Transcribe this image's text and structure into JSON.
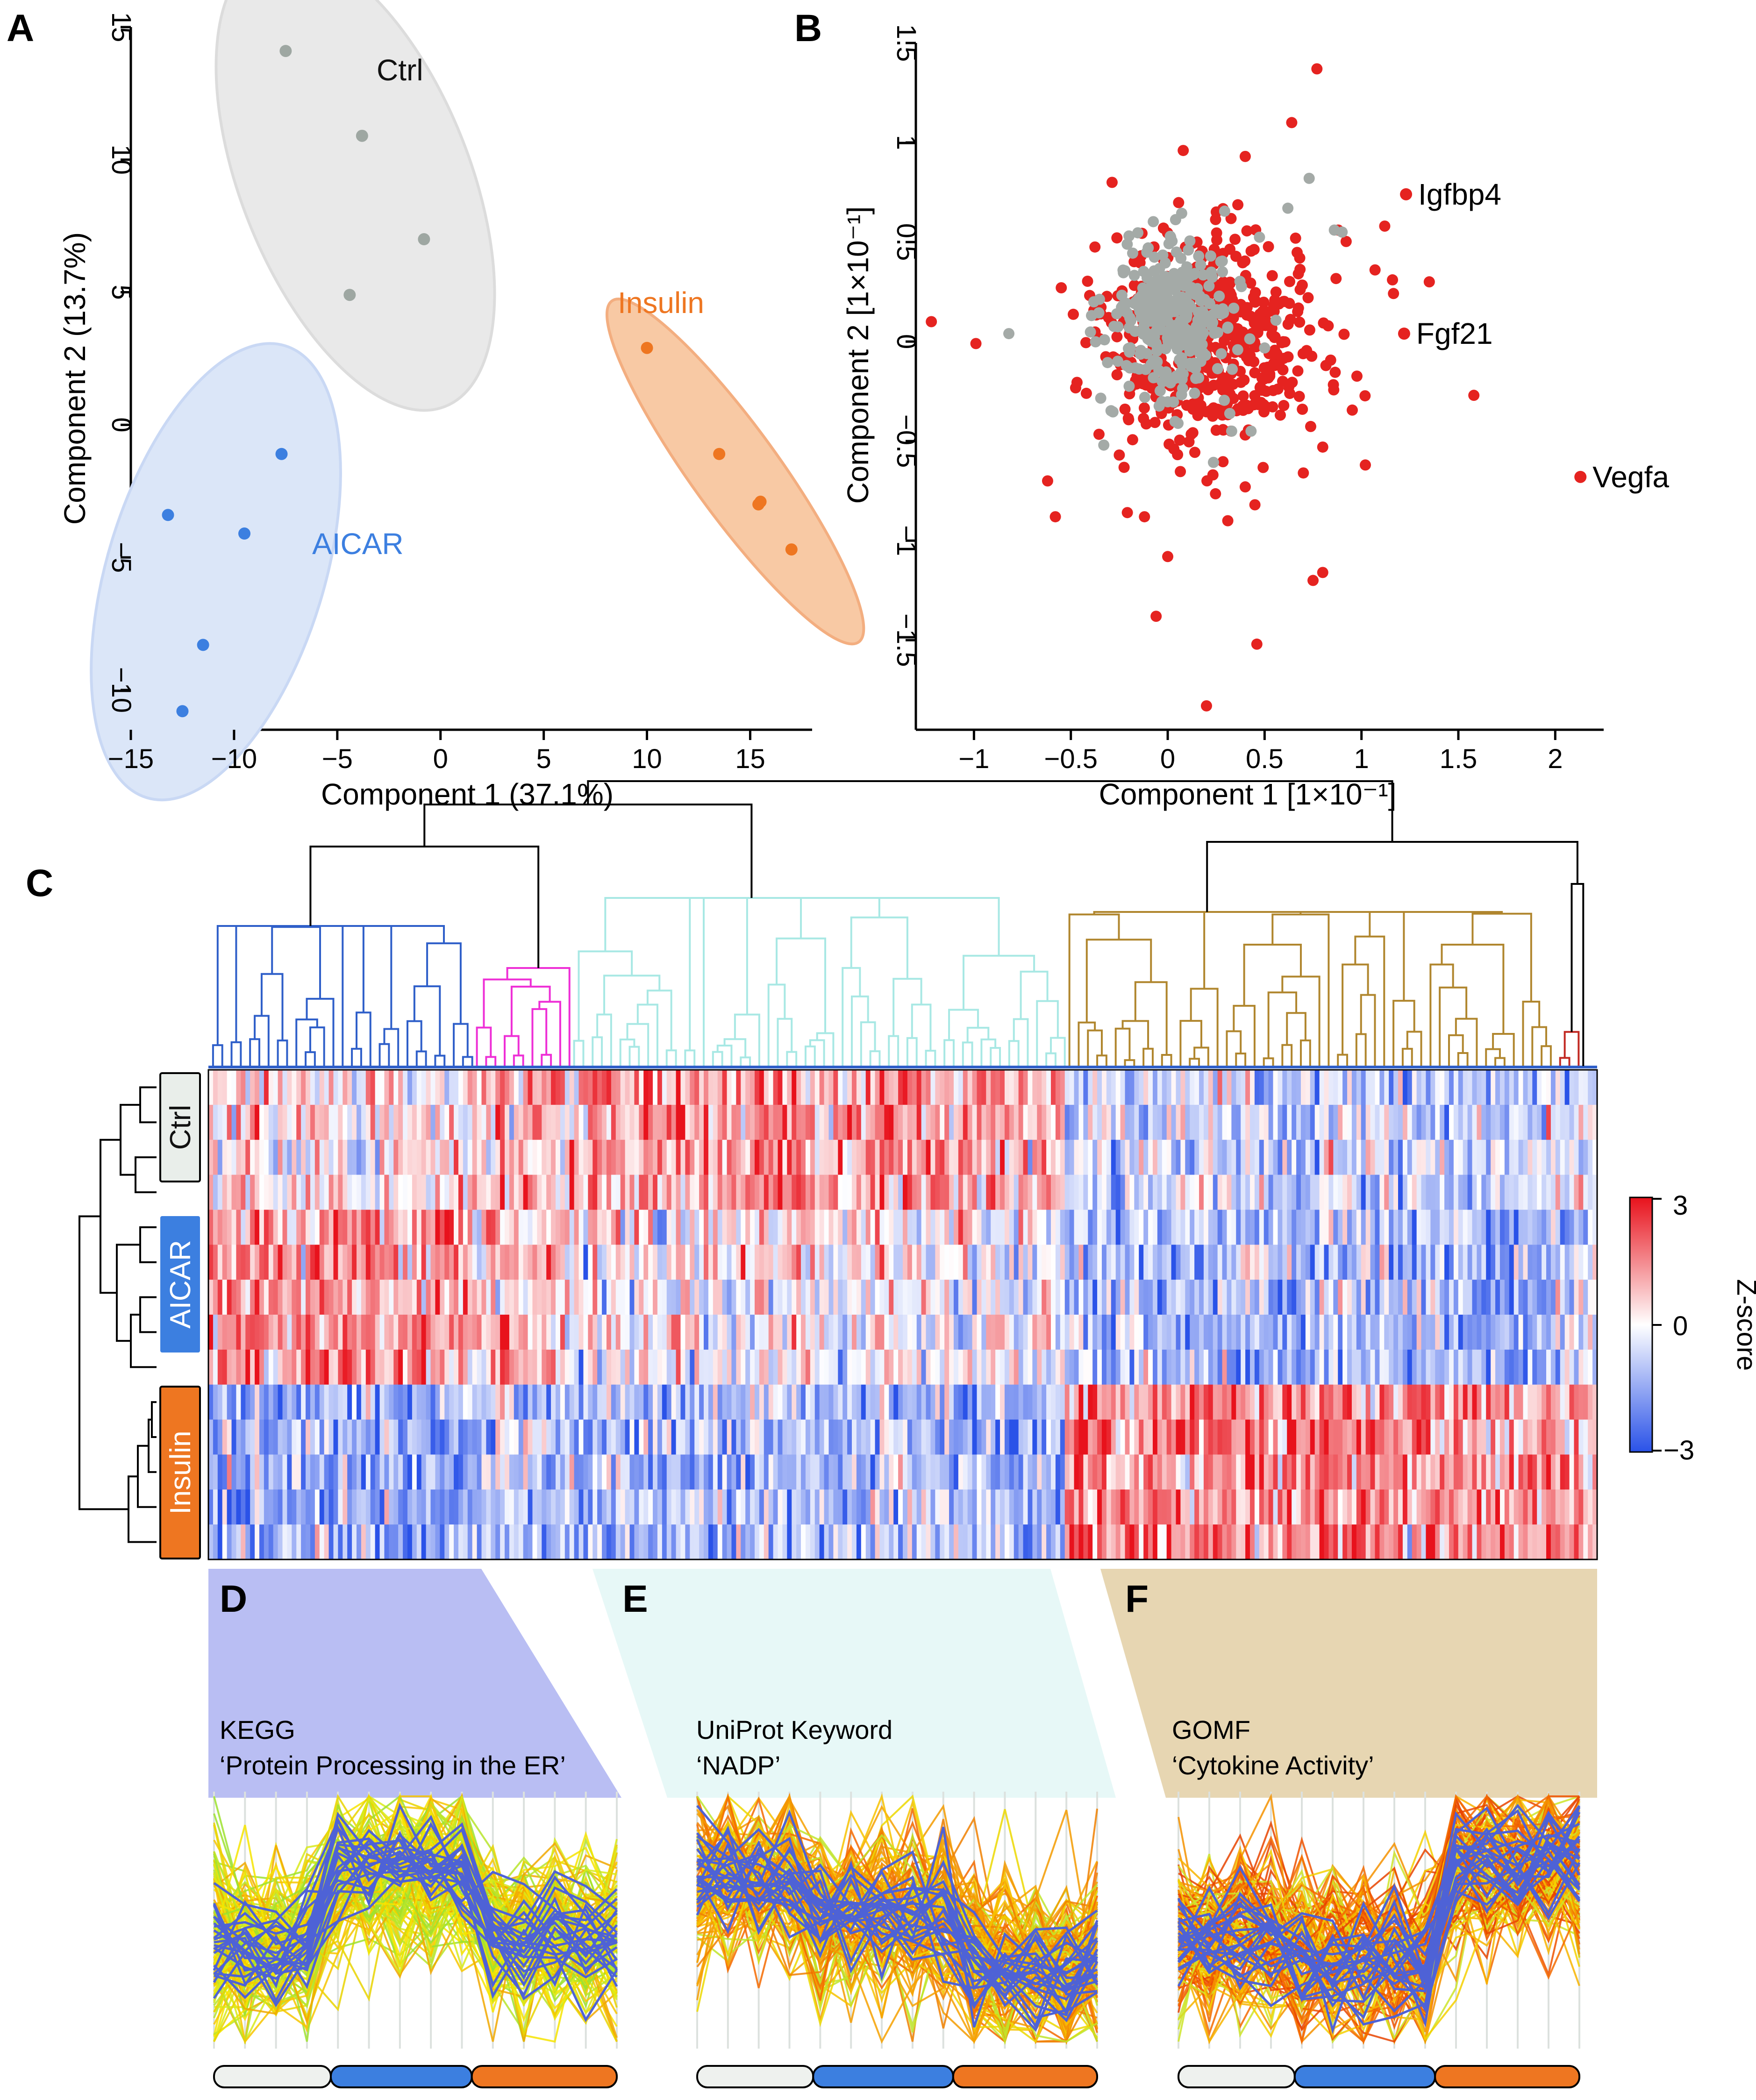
{
  "panels": {
    "A": "A",
    "B": "B",
    "C": "C",
    "D": "D",
    "E": "E",
    "F": "F"
  },
  "colors": {
    "ctrl": "#9ea7a2",
    "aicar": "#3c7fe0",
    "insulin": "#ee7621",
    "ctrl_fill": "#e9e9e9",
    "aicar_fill": "#dbe6f8",
    "insulin_fill": "#f8c9a4",
    "red": "#e52320",
    "grey": "#a4aaa7",
    "dendro_blue": "#2f5fc9",
    "dendro_magenta": "#ee2fd6",
    "dendro_cyan": "#a8e8e4",
    "dendro_gold": "#b0862e",
    "dendro_red": "#c22a23",
    "dendro_green": "#9ad77a"
  },
  "chart_data": [
    {
      "id": "A",
      "type": "scatter",
      "xlabel": "Component 1 (37.1%)",
      "ylabel": "Component 2 (13.7%)",
      "xlim": [
        -15,
        18
      ],
      "ylim": [
        -11.5,
        15
      ],
      "xticks": [
        "−15",
        "−10",
        "−5",
        "0",
        "5",
        "10",
        "15"
      ],
      "yticks": [
        "−10",
        "−5",
        "0",
        "5",
        "10",
        "15"
      ],
      "xtick_values": [
        -15,
        -10,
        -5,
        0,
        5,
        10,
        15
      ],
      "ytick_values": [
        -10,
        -5,
        0,
        5,
        10,
        15
      ],
      "series": [
        {
          "name": "Ctrl",
          "color": "#9ea7a2",
          "points": [
            [
              -7.5,
              14.1
            ],
            [
              -3.8,
              10.9
            ],
            [
              -0.8,
              7.0
            ],
            [
              -4.4,
              4.9
            ]
          ]
        },
        {
          "name": "AICAR",
          "color": "#3c7fe0",
          "points": [
            [
              -7.7,
              -1.1
            ],
            [
              -13.2,
              -3.4
            ],
            [
              -9.5,
              -4.1
            ],
            [
              -11.5,
              -8.3
            ],
            [
              -12.5,
              -10.8
            ]
          ]
        },
        {
          "name": "Insulin",
          "color": "#ee7621",
          "points": [
            [
              10.0,
              2.9
            ],
            [
              13.5,
              -1.1
            ],
            [
              15.5,
              -2.9
            ],
            [
              15.4,
              -3.0
            ],
            [
              17.0,
              -4.7
            ]
          ]
        }
      ],
      "annotations": [
        "Ctrl",
        "AICAR",
        "Insulin"
      ]
    },
    {
      "id": "B",
      "type": "scatter",
      "xlabel": "Component 1 [1×10⁻¹]",
      "ylabel": "Component 2 [1×10⁻¹]",
      "xlim": [
        -1.3,
        2.25
      ],
      "ylim": [
        -1.95,
        1.5
      ],
      "xticks": [
        "−1",
        "−0.5",
        "0",
        "0.5",
        "1",
        "1.5",
        "2"
      ],
      "yticks": [
        "−1.5",
        "−1",
        "−0.5",
        "0",
        "0.5",
        "1",
        "1.5"
      ],
      "xtick_values": [
        -1,
        -0.5,
        0,
        0.5,
        1,
        1.5,
        2
      ],
      "ytick_values": [
        -1.5,
        -1,
        -0.5,
        0,
        0.5,
        1,
        1.5
      ],
      "labeled_points": [
        {
          "label": "Igfbp4",
          "x": 1.23,
          "y": 0.74
        },
        {
          "label": "Fgf21",
          "x": 1.22,
          "y": 0.04
        },
        {
          "label": "Vegfa",
          "x": 2.13,
          "y": -0.68
        }
      ],
      "red_outliers": [
        [
          -1.22,
          0.1
        ],
        [
          -0.99,
          -0.01
        ],
        [
          -0.62,
          -0.7
        ],
        [
          -0.58,
          -0.88
        ],
        [
          -0.12,
          -0.88
        ],
        [
          -0.06,
          -1.38
        ],
        [
          0.0,
          -1.08
        ],
        [
          0.2,
          -1.83
        ],
        [
          0.46,
          -1.52
        ],
        [
          0.75,
          -1.2
        ],
        [
          0.8,
          -1.16
        ],
        [
          0.4,
          -0.73
        ],
        [
          0.31,
          -0.9
        ],
        [
          0.45,
          -0.82
        ],
        [
          0.7,
          -0.66
        ],
        [
          0.8,
          -0.53
        ],
        [
          1.02,
          -0.62
        ],
        [
          1.58,
          -0.27
        ],
        [
          1.07,
          0.36
        ],
        [
          1.12,
          0.58
        ],
        [
          1.16,
          0.31
        ],
        [
          0.77,
          1.37
        ],
        [
          0.64,
          1.1
        ],
        [
          -0.42,
          -0.26
        ],
        [
          -0.25,
          -0.57
        ],
        [
          0.08,
          0.96
        ],
        [
          0.4,
          0.93
        ],
        [
          0.88,
          0.56
        ],
        [
          1.35,
          0.3
        ]
      ],
      "grey_outliers": [
        [
          -0.82,
          0.04
        ],
        [
          0.86,
          0.56
        ],
        [
          0.9,
          0.55
        ],
        [
          0.73,
          0.82
        ],
        [
          0.62,
          0.67
        ],
        [
          -0.33,
          -0.52
        ],
        [
          0.33,
          -0.45
        ],
        [
          0.43,
          -0.45
        ]
      ],
      "red_cloud": {
        "center": [
          0.22,
          0.0
        ],
        "spread": [
          0.46,
          0.42
        ],
        "count": 560
      },
      "grey_cloud": {
        "center": [
          0.02,
          0.12
        ],
        "spread": [
          0.26,
          0.32
        ],
        "count": 320
      }
    },
    {
      "id": "C",
      "type": "heatmap",
      "rows": [
        "Ctrl",
        "Ctrl",
        "Ctrl",
        "Ctrl",
        "AICAR",
        "AICAR",
        "AICAR",
        "AICAR",
        "AICAR",
        "Insulin",
        "Insulin",
        "Insulin",
        "Insulin",
        "Insulin"
      ],
      "row_groups": [
        "Ctrl",
        "AICAR",
        "Insulin"
      ],
      "column_clusters": [
        {
          "name": "blue",
          "color": "#2f5fc9",
          "fraction": 0.19,
          "profile": {
            "Ctrl": 0.15,
            "AICAR": 0.75,
            "Insulin": -0.9
          }
        },
        {
          "name": "magenta",
          "color": "#ee2fd6",
          "fraction": 0.07,
          "profile": {
            "Ctrl": 0.3,
            "AICAR": 0.35,
            "Insulin": -0.6
          }
        },
        {
          "name": "cyan",
          "color": "#a8e8e4",
          "fraction": 0.355,
          "profile": {
            "Ctrl": 0.8,
            "AICAR": 0.05,
            "Insulin": -0.7
          }
        },
        {
          "name": "gold",
          "color": "#b0862e",
          "fraction": 0.355,
          "profile": {
            "Ctrl": -0.45,
            "AICAR": -0.7,
            "Insulin": 0.95
          }
        },
        {
          "name": "red",
          "color": "#c22a23",
          "fraction": 0.015,
          "profile": {
            "Ctrl": -0.3,
            "AICAR": -0.4,
            "Insulin": 0.8
          }
        },
        {
          "name": "green",
          "color": "#9ad77a",
          "fraction": 0.005,
          "profile": {
            "Ctrl": -0.2,
            "AICAR": -0.3,
            "Insulin": 0.5
          }
        }
      ],
      "colorbar": {
        "title": "Z-score",
        "ticks": [
          "3",
          "0",
          "−3"
        ],
        "tick_values": [
          3,
          0,
          -3
        ],
        "range": [
          -3,
          3
        ],
        "colors": [
          "#2a52e8",
          "#ffffff",
          "#e8121c"
        ]
      }
    },
    {
      "id": "D",
      "type": "line",
      "source": "KEGG",
      "term": "‘Protein Processing in the ER’",
      "highlight_color": "#4e62d6",
      "background_palette": "yellow-green",
      "group_bar": [
        "Ctrl",
        "AICAR",
        "Insulin"
      ],
      "highlight_profile": {
        "Ctrl": -0.3,
        "AICAR": 0.6,
        "Insulin": -0.2
      }
    },
    {
      "id": "E",
      "type": "line",
      "source": "UniProt Keyword",
      "term": "‘NADP’",
      "highlight_color": "#4e62d6",
      "background_palette": "orange-yellow",
      "group_bar": [
        "Ctrl",
        "AICAR",
        "Insulin"
      ],
      "highlight_profile": {
        "Ctrl": 0.5,
        "AICAR": 0.1,
        "Insulin": -0.5
      }
    },
    {
      "id": "F",
      "type": "line",
      "source": "GOMF",
      "term": "‘Cytokine Activity’",
      "highlight_color": "#4e62d6",
      "background_palette": "orange",
      "group_bar": [
        "Ctrl",
        "AICAR",
        "Insulin"
      ],
      "highlight_profile": {
        "Ctrl": -0.2,
        "AICAR": -0.45,
        "Insulin": 0.7
      }
    }
  ],
  "enrichment_banners": [
    {
      "id": "D",
      "source": "KEGG",
      "term": "‘Protein Processing in the ER’",
      "color": "#b9bef3"
    },
    {
      "id": "E",
      "source": "UniProt Keyword",
      "term": "‘NADP’",
      "color": "#e7f8f7"
    },
    {
      "id": "F",
      "source": "GOMF",
      "term": "‘Cytokine Activity’",
      "color": "#e7d6b2"
    }
  ]
}
